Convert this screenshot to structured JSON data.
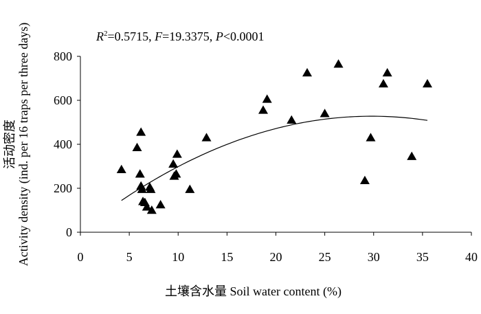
{
  "chart_data": {
    "type": "scatter",
    "annotation": {
      "r2_label": "R",
      "r2_sup": "2",
      "r2_value": "=0.5715, ",
      "f_label": "F",
      "f_value": "=19.3375, ",
      "p_label": "P",
      "p_value": "<0.0001"
    },
    "xlabel": "土壤含水量 Soil water content (%)",
    "ylabel_cn": "活动密度",
    "ylabel_en": "Activity density (ind. per 16 traps per three days)",
    "xlim": [
      0,
      40
    ],
    "ylim": [
      0,
      800
    ],
    "xticks": [
      0,
      5,
      10,
      15,
      20,
      25,
      30,
      35,
      40
    ],
    "yticks": [
      0,
      200,
      400,
      600,
      800
    ],
    "marker": "filled-triangle",
    "color": "#000000",
    "points": [
      {
        "x": 4.2,
        "y": 285
      },
      {
        "x": 5.8,
        "y": 385
      },
      {
        "x": 6.1,
        "y": 265
      },
      {
        "x": 6.2,
        "y": 455
      },
      {
        "x": 6.2,
        "y": 210
      },
      {
        "x": 6.3,
        "y": 195
      },
      {
        "x": 6.4,
        "y": 140
      },
      {
        "x": 6.6,
        "y": 135
      },
      {
        "x": 6.8,
        "y": 115
      },
      {
        "x": 7.1,
        "y": 205
      },
      {
        "x": 7.2,
        "y": 195
      },
      {
        "x": 7.3,
        "y": 100
      },
      {
        "x": 8.2,
        "y": 125
      },
      {
        "x": 9.5,
        "y": 310
      },
      {
        "x": 9.6,
        "y": 255
      },
      {
        "x": 9.8,
        "y": 265
      },
      {
        "x": 9.9,
        "y": 355
      },
      {
        "x": 11.2,
        "y": 195
      },
      {
        "x": 12.9,
        "y": 430
      },
      {
        "x": 18.7,
        "y": 555
      },
      {
        "x": 19.1,
        "y": 605
      },
      {
        "x": 21.6,
        "y": 510
      },
      {
        "x": 23.2,
        "y": 725
      },
      {
        "x": 25.0,
        "y": 540
      },
      {
        "x": 26.4,
        "y": 765
      },
      {
        "x": 29.1,
        "y": 235
      },
      {
        "x": 29.7,
        "y": 430
      },
      {
        "x": 31.0,
        "y": 675
      },
      {
        "x": 31.4,
        "y": 725
      },
      {
        "x": 33.9,
        "y": 345
      },
      {
        "x": 35.5,
        "y": 675
      }
    ],
    "fit": {
      "type": "quadratic",
      "coefficients": [
        8.3,
        34.86,
        -0.5849
      ],
      "x_range": [
        4.2,
        35.5
      ]
    },
    "grid": false,
    "legend": "none"
  }
}
